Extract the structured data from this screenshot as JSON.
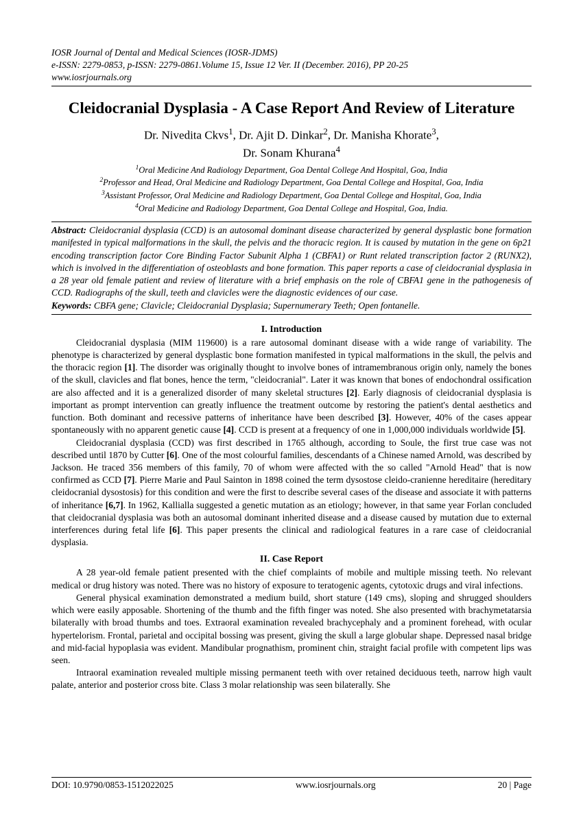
{
  "header": {
    "journal": "IOSR Journal of Dental and Medical Sciences (IOSR-JDMS)",
    "issn_line": "e-ISSN: 2279-0853, p-ISSN: 2279-0861.Volume 15, Issue 12 Ver. II (December. 2016), PP 20-25",
    "url": "www.iosrjournals.org"
  },
  "title": "Cleidocranial Dysplasia - A Case Report And Review of Literature",
  "authors_line1": "Dr. Nivedita Ckvs",
  "authors_sep1": ", ",
  "authors_line2": "Dr. Ajit D. Dinkar",
  "authors_sep2": ", ",
  "authors_line3": "Dr. Manisha Khorate",
  "authors_sep3": ",",
  "authors_line4": "Dr. Sonam Khurana",
  "affiliations": {
    "a1": "Oral Medicine And Radiology Department, Goa Dental College And Hospital, Goa, India",
    "a2": "Professor and Head, Oral Medicine and Radiology Department, Goa Dental College and Hospital, Goa, India",
    "a3": "Assistant Professor, Oral Medicine and Radiology Department, Goa Dental College and Hospital, Goa, India",
    "a4": "Oral Medicine and Radiology Department, Goa Dental College and Hospital, Goa, India."
  },
  "abstract": {
    "label": "Abstract:",
    "text": "Cleidocranial dysplasia (CCD) is an autosomal dominant disease characterized by general dysplastic bone formation manifested in typical malformations in the skull, the pelvis and the thoracic region. It is caused by mutation in the gene on 6p21 encoding transcription factor Core Binding Factor Subunit Alpha 1 (CBFA1) or Runt related transcription factor 2 (RUNX2), which is involved in the differentiation of osteoblasts and bone formation. This paper reports a case of cleidocranial dysplasia in a 28 year old female patient and review of literature with a brief emphasis on the role of CBFA1 gene in the pathogenesis of CCD. Radiographs of the skull, teeth and clavicles were the diagnostic evidences of our case.",
    "keywords_label": "Keywords:",
    "keywords": "CBFA gene; Clavicle; Cleidocranial Dysplasia; Supernumerary Teeth; Open fontanelle."
  },
  "sections": {
    "intro_heading": "I.      Introduction",
    "case_heading": "II.      Case Report"
  },
  "intro": {
    "p1a": "Cleidocranial dysplasia (MIM 119600) is a rare autosomal dominant disease with a wide range of variability. The phenotype is characterized by general dysplastic bone formation manifested in typical malformations in the skull, the pelvis and the thoracic region ",
    "r1": "[1]",
    "p1b": ". The disorder was originally thought to involve bones of intramembranous origin only, namely the bones of the skull, clavicles and flat bones, hence the term, \"cleidocranial\". Later it was known that bones of endochondral ossification are also affected and it is a generalized disorder of many skeletal structures ",
    "r2": "[2]",
    "p1c": ". Early diagnosis of cleidocranial dysplasia is important as prompt intervention can greatly influence the treatment outcome by restoring the patient's dental aesthetics and function. Both dominant and recessive patterns of inheritance have been described ",
    "r3": "[3]",
    "p1d": ". However, 40% of the cases appear spontaneously with no apparent genetic cause ",
    "r4": "[4]",
    "p1e": ". CCD is present at a frequency of one in 1,000,000 individuals worldwide ",
    "r5": "[5]",
    "p1f": ".",
    "p2a": "Cleidocranial dysplasia (CCD) was first described in 1765 although, according to Soule, the first true case was not described until 1870 by Cutter ",
    "r6": "[6]",
    "p2b": ". One of the most colourful families, descendants of a Chinese named Arnold, was described by Jackson. He traced 356 members of this family, 70 of whom were affected with the so called \"Arnold Head\" that is now confirmed as CCD ",
    "r7": "[7]",
    "p2c": ". Pierre Marie and Paul Sainton in 1898 coined the term dysostose cleido-cranienne hereditaire (hereditary cleidocranial dysostosis) for this condition and were the first to describe several cases of the disease and associate it with patterns of inheritance ",
    "r8": "[6,7]",
    "p2d": ". In 1962, Kallialla suggested a genetic mutation as an etiology; however, in that same year Forlan concluded that cleidocranial dysplasia was both an autosomal dominant inherited disease and a disease caused by mutation due to external interferences during fetal life ",
    "r9": "[6]",
    "p2e": ". This paper presents the clinical and radiological features in a rare case of cleidocranial dysplasia."
  },
  "case": {
    "p1": "A 28 year-old female patient presented with the chief complaints of mobile and multiple missing teeth. No relevant medical or drug history was noted. There was no history of exposure to teratogenic agents, cytotoxic drugs and viral infections.",
    "p2": "General physical examination demonstrated a medium build, short stature (149 cms), sloping and shrugged shoulders which were easily apposable. Shortening of the thumb and the fifth finger was noted. She also presented with brachymetatarsia bilaterally with broad thumbs and toes. Extraoral examination revealed brachycephaly and a prominent forehead, with ocular hypertelorism. Frontal, parietal and occipital bossing was present, giving the skull a large globular shape. Depressed nasal bridge and mid-facial hypoplasia was evident. Mandibular prognathism, prominent chin, straight facial profile with competent lips was seen.",
    "p3": "Intraoral examination revealed multiple missing permanent teeth with over retained deciduous teeth, narrow high vault palate, anterior and posterior cross bite. Class 3 molar relationship was seen bilaterally. She"
  },
  "footer": {
    "doi": "DOI: 10.9790/0853-1512022025",
    "site": "www.iosrjournals.org",
    "page": "20 | Page"
  }
}
